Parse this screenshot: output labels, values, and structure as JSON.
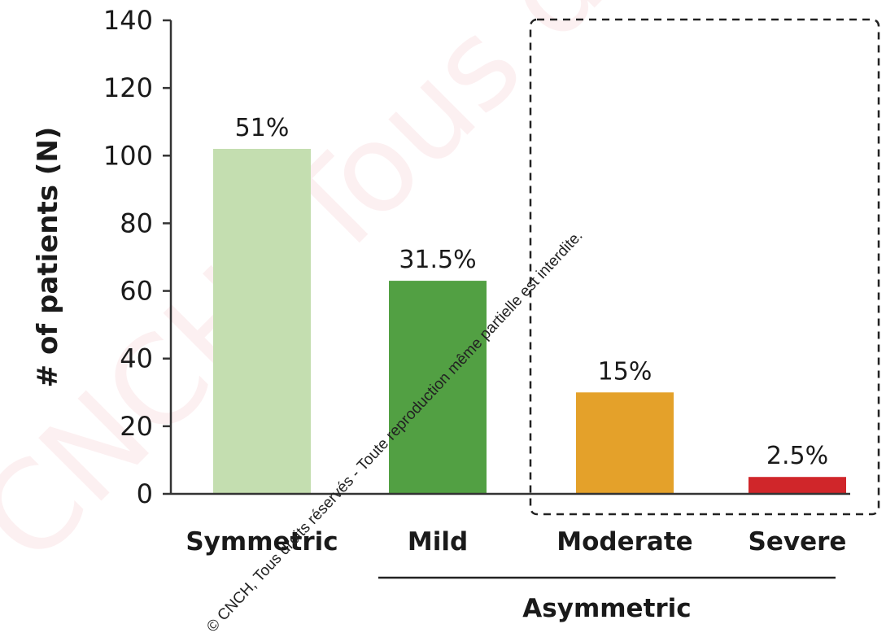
{
  "chart_data": {
    "type": "bar",
    "categories": [
      "Symmetric",
      "Mild",
      "Moderate",
      "Severe"
    ],
    "values": [
      102,
      63,
      30,
      5
    ],
    "data_labels": [
      "51%",
      "31.5%",
      "15%",
      "2.5%"
    ],
    "colors": [
      "#c4deb0",
      "#52a043",
      "#e4a12a",
      "#d0262a"
    ],
    "ylabel": "# of patients (N)",
    "xlabel": "",
    "ylim": [
      0,
      140
    ],
    "yticks": [
      0,
      20,
      40,
      60,
      80,
      100,
      120,
      140
    ],
    "grid": false,
    "legend": "none",
    "group_label": "Asymmetric",
    "group_members": [
      "Mild",
      "Moderate",
      "Severe"
    ],
    "highlight_box_members": [
      "Moderate",
      "Severe"
    ]
  },
  "watermark": {
    "text": "© CNCH, Tous droits réservés - Toute reproduction même partielle est interdite.",
    "background_text": "CNCH, Tous droits réservés",
    "color": "#e23a4a"
  }
}
